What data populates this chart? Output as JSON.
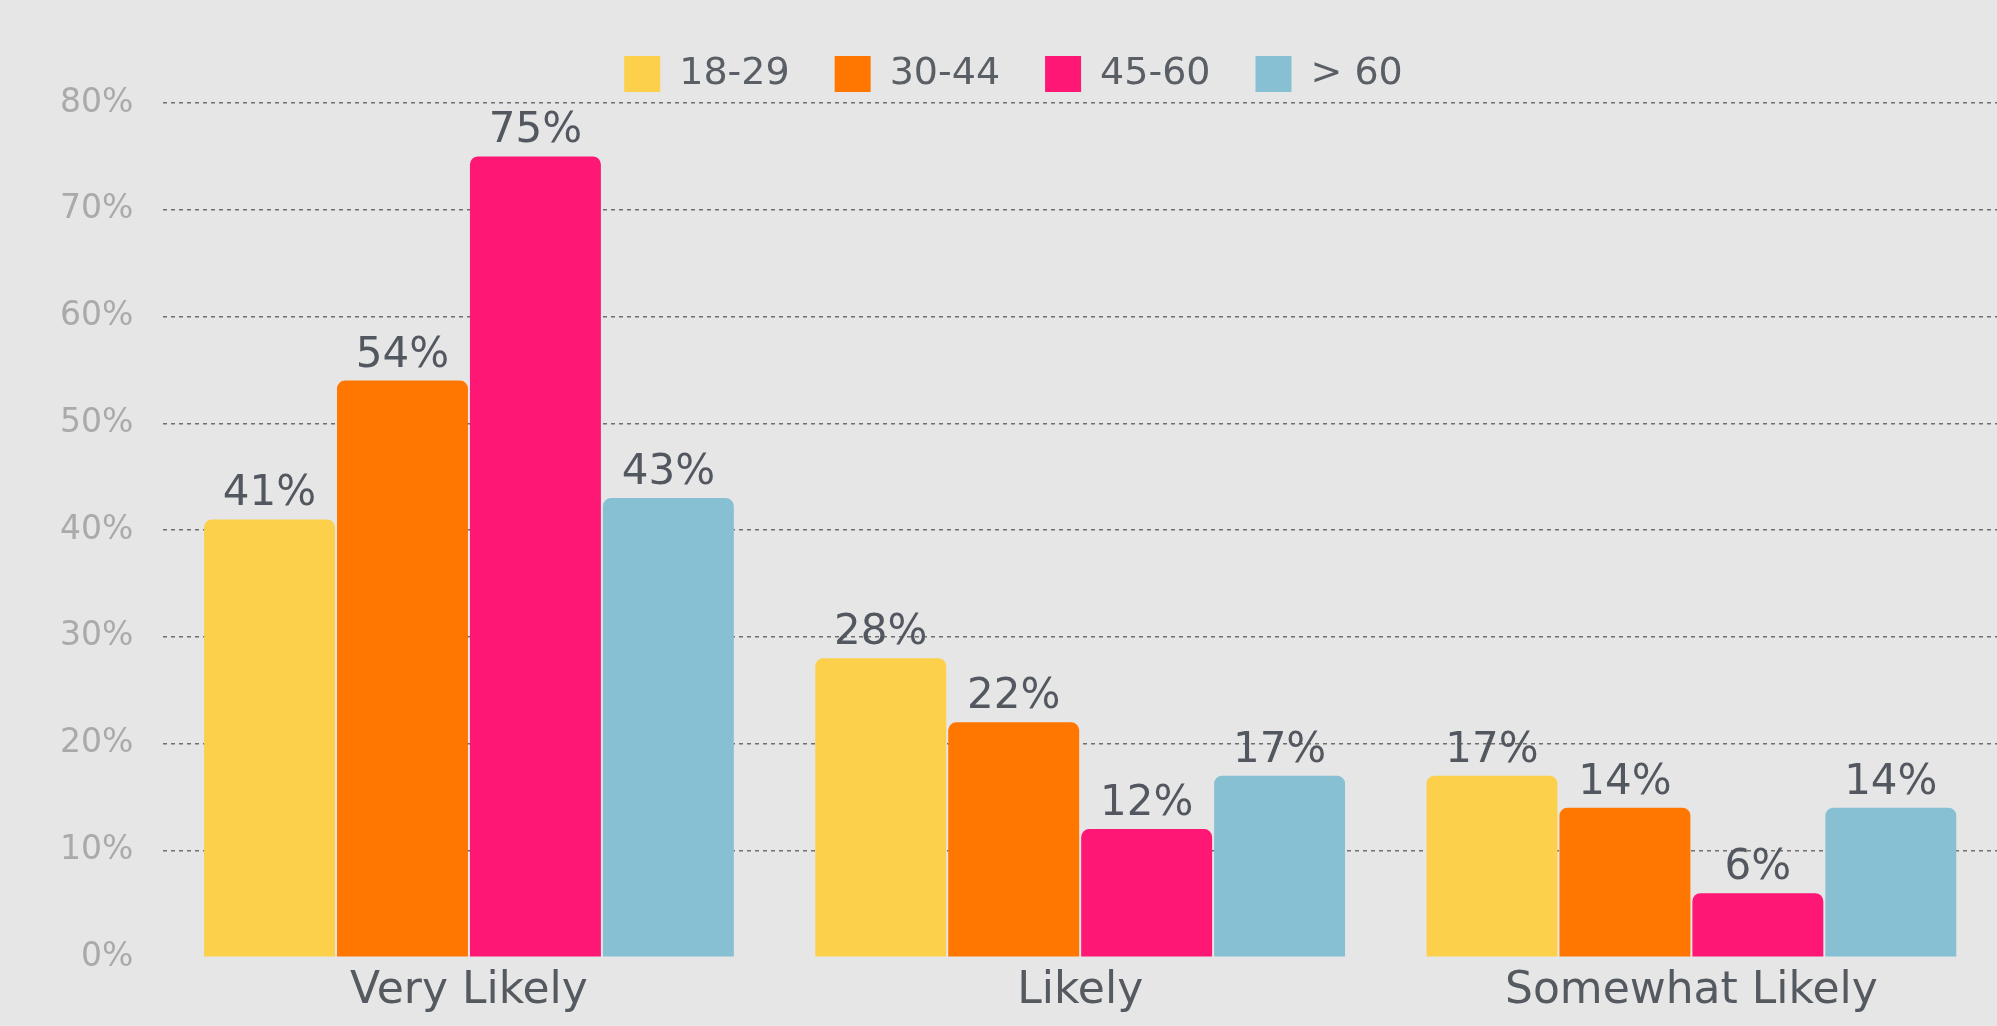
{
  "chart_data": {
    "type": "bar",
    "categories": [
      "Very Likely",
      "Likely",
      "Somewhat Likely"
    ],
    "series": [
      {
        "name": "18-29",
        "color": "#fcd04a",
        "values": [
          41,
          28,
          17
        ],
        "value_labels": [
          "41%",
          "28%",
          "17%"
        ]
      },
      {
        "name": "30-44",
        "color": "#ff7700",
        "values": [
          54,
          22,
          14
        ],
        "value_labels": [
          "54%",
          "22%",
          "14%"
        ]
      },
      {
        "name": "45-60",
        "color": "#ff1776",
        "values": [
          75,
          12,
          6
        ],
        "value_labels": [
          "75%",
          "12%",
          "6%"
        ]
      },
      {
        "name": "> 60",
        "color": "#88c0d3",
        "values": [
          43,
          17,
          14
        ],
        "value_labels": [
          "43%",
          "17%",
          "14%"
        ]
      }
    ],
    "ylim": [
      0,
      80
    ],
    "yticks": [
      {
        "value": 0,
        "label": "0%"
      },
      {
        "value": 10,
        "label": "10%"
      },
      {
        "value": 20,
        "label": "20%"
      },
      {
        "value": 30,
        "label": "30%"
      },
      {
        "value": 40,
        "label": "40%"
      },
      {
        "value": 50,
        "label": "50%"
      },
      {
        "value": 60,
        "label": "60%"
      },
      {
        "value": 70,
        "label": "70%"
      },
      {
        "value": 80,
        "label": "80%"
      }
    ],
    "grid": "y",
    "legend": "top"
  }
}
